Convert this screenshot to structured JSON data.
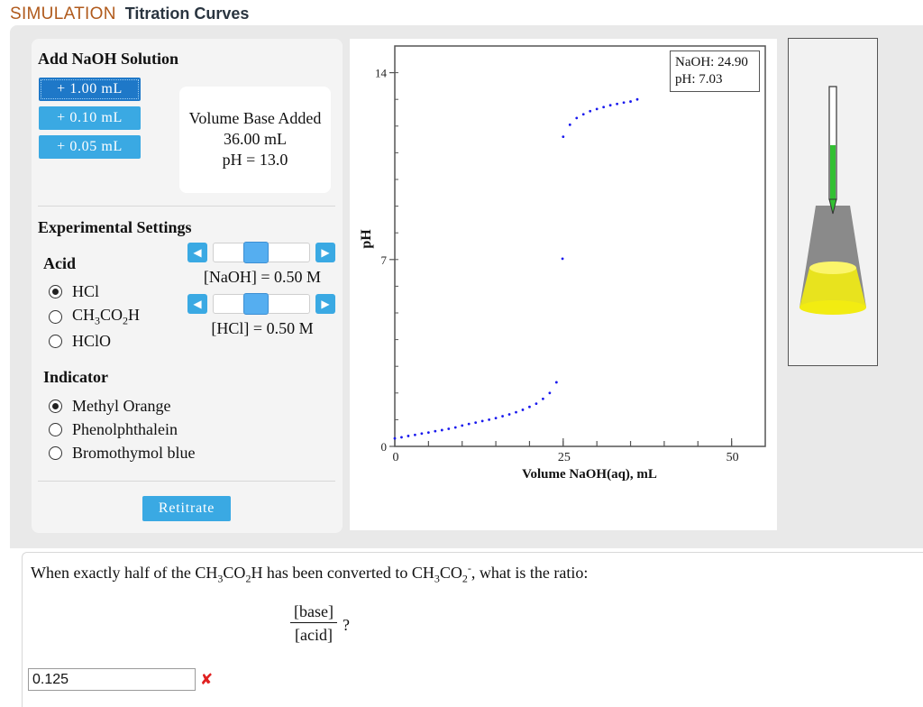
{
  "header": {
    "app": "SIMULATION",
    "title": "Titration Curves"
  },
  "controls": {
    "add_title": "Add NaOH Solution",
    "buttons": [
      "+ 1.00 mL",
      "+ 0.10 mL",
      "+ 0.05 mL"
    ],
    "volume_box": {
      "label": "Volume Base Added",
      "volume": "36.00 mL",
      "ph": "pH = 13.0"
    },
    "settings_title": "Experimental Settings",
    "acid_label": "Acid",
    "acids": [
      {
        "label": "HCl",
        "selected": true
      },
      {
        "label": "CH₃CO₂H",
        "selected": false
      },
      {
        "label": "HClO",
        "selected": false
      }
    ],
    "naoh_label": "[NaOH] = 0.50 M",
    "naoh_value": 0.5,
    "hcl_label": "[HCl] = 0.50 M",
    "hcl_value": 0.5,
    "indicator_label": "Indicator",
    "indicators": [
      {
        "label": "Methyl Orange",
        "selected": true
      },
      {
        "label": "Phenolphthalein",
        "selected": false
      },
      {
        "label": "Bromothymol blue",
        "selected": false
      }
    ],
    "retitrate": "Retitrate"
  },
  "annotation": {
    "naoh": "NaOH: 24.90",
    "ph": "pH: 7.03"
  },
  "chart_data": {
    "type": "scatter",
    "xlabel": "Volume NaOH(aq), mL",
    "ylabel": "pH",
    "xlim": [
      0,
      55
    ],
    "ylim": [
      0,
      15
    ],
    "xticks": [
      "0",
      "25",
      "50"
    ],
    "yticks": [
      "0",
      "7",
      "14"
    ],
    "color": "#1a1aee",
    "x": [
      0,
      1,
      2,
      3,
      4,
      5,
      6,
      7,
      8,
      9,
      10,
      11,
      12,
      13,
      14,
      15,
      16,
      17,
      18,
      19,
      20,
      21,
      22,
      23,
      24,
      24.9,
      25,
      26,
      27,
      28,
      29,
      30,
      31,
      32,
      33,
      34,
      35,
      36
    ],
    "y": [
      0.3,
      0.34,
      0.39,
      0.43,
      0.48,
      0.52,
      0.57,
      0.61,
      0.66,
      0.71,
      0.78,
      0.84,
      0.89,
      0.95,
      1.0,
      1.06,
      1.13,
      1.2,
      1.28,
      1.37,
      1.48,
      1.6,
      1.78,
      2.0,
      2.4,
      7.03,
      11.6,
      12.05,
      12.3,
      12.44,
      12.56,
      12.64,
      12.71,
      12.78,
      12.83,
      12.88,
      12.92,
      13.0
    ]
  },
  "flask": {
    "liquid_color": "#f2ec12",
    "base_color": "#32c032"
  },
  "question": {
    "prefix": "When exactly half of the CH₃CO₂H has been converted to CH₃CO₂⁻, what is the ratio:",
    "numerator": "[base]",
    "denominator": "[acid]",
    "qmark": "?",
    "answer": "0.125"
  }
}
